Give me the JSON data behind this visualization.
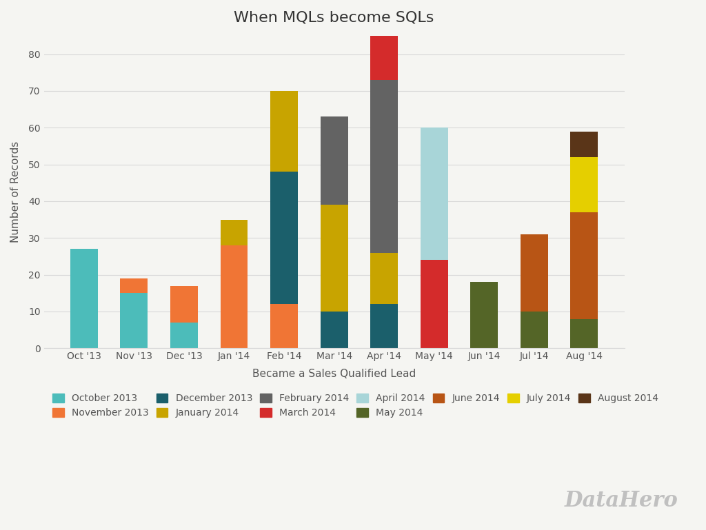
{
  "title": "When MQLs become SQLs",
  "xlabel": "Became a Sales Qualified Lead",
  "ylabel": "Number of Records",
  "categories": [
    "Oct '13",
    "Nov '13",
    "Dec '13",
    "Jan '14",
    "Feb '14",
    "Mar '14",
    "Apr '14",
    "May '14",
    "Jun '14",
    "Jul '14",
    "Aug '14"
  ],
  "series_labels": [
    "October 2013",
    "November 2013",
    "December 2013",
    "January 2014",
    "February 2014",
    "March 2014",
    "April 2014",
    "May 2014",
    "June 2014",
    "July 2014",
    "August 2014"
  ],
  "colors": [
    "#4CBCBA",
    "#F07535",
    "#1B5F6B",
    "#C8A400",
    "#636363",
    "#D42B2B",
    "#A8D5D8",
    "#546527",
    "#B85515",
    "#E5CF00",
    "#5A3518"
  ],
  "data": [
    [
      27,
      15,
      7,
      0,
      0,
      0,
      0,
      0,
      0,
      0,
      0
    ],
    [
      0,
      4,
      10,
      28,
      12,
      0,
      0,
      0,
      0,
      0,
      0
    ],
    [
      0,
      0,
      0,
      0,
      36,
      10,
      12,
      0,
      0,
      0,
      0
    ],
    [
      0,
      0,
      0,
      7,
      22,
      29,
      14,
      0,
      0,
      0,
      0
    ],
    [
      0,
      0,
      0,
      0,
      0,
      24,
      47,
      0,
      0,
      0,
      0
    ],
    [
      0,
      0,
      0,
      0,
      0,
      0,
      15,
      24,
      0,
      0,
      0
    ],
    [
      0,
      0,
      0,
      0,
      0,
      0,
      0,
      36,
      0,
      0,
      0
    ],
    [
      0,
      0,
      0,
      0,
      0,
      0,
      0,
      0,
      18,
      10,
      8
    ],
    [
      0,
      0,
      0,
      0,
      0,
      0,
      0,
      0,
      0,
      21,
      29
    ],
    [
      0,
      0,
      0,
      0,
      0,
      0,
      0,
      0,
      0,
      0,
      15
    ],
    [
      0,
      0,
      0,
      0,
      0,
      0,
      0,
      0,
      0,
      0,
      7
    ]
  ],
  "ylim": [
    0,
    85
  ],
  "yticks": [
    0,
    10,
    20,
    30,
    40,
    50,
    60,
    70,
    80
  ],
  "background_color": "#F5F5F2",
  "grid_color": "#D8D8D8",
  "title_fontsize": 16,
  "axis_fontsize": 11,
  "tick_fontsize": 10,
  "legend_fontsize": 10,
  "bar_width": 0.55
}
